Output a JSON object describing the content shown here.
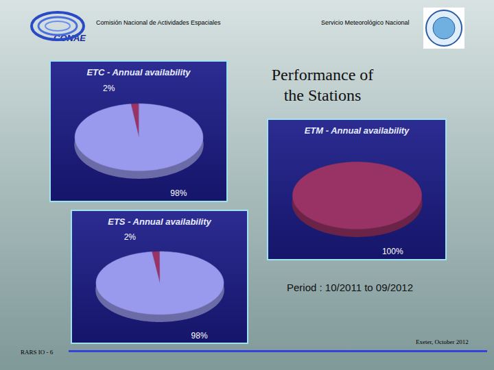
{
  "header": {
    "left": "Comisión Nacional de Actividades Espaciales",
    "right": "Servicio Meteorológico Nacional",
    "logo": "CONAE"
  },
  "title": "Performance of the Stations",
  "period": "Period : 10/2011 to 09/2012",
  "footer": {
    "left": "RARS IO - 6",
    "right": "Exeter, October 2012"
  },
  "chart_data": [
    {
      "type": "pie",
      "title": "ETC - Annual availability",
      "values": [
        2,
        98
      ],
      "value_labels": [
        "2%",
        "98%"
      ],
      "colors": [
        "#993366",
        "#9999ee"
      ],
      "data_labels": true
    },
    {
      "type": "pie",
      "title": "ETM - Annual availability",
      "values": [
        100
      ],
      "value_labels": [
        "100%"
      ],
      "colors": [
        "#993366"
      ],
      "data_labels": true
    },
    {
      "type": "pie",
      "title": "ETS - Annual availability",
      "values": [
        2,
        98
      ],
      "value_labels": [
        "2%",
        "98%"
      ],
      "colors": [
        "#993366",
        "#9999ee"
      ],
      "data_labels": true
    }
  ]
}
